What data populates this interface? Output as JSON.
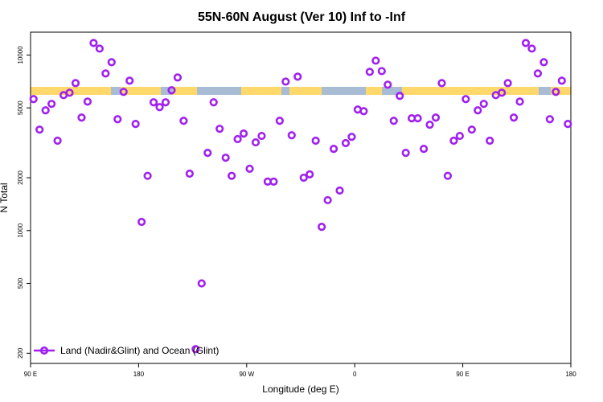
{
  "chart_data": {
    "type": "scatter",
    "title": "55N-60N August (Ver 10)   Inf to -Inf",
    "xlabel": "Longitude (deg E)",
    "ylabel": "N Total",
    "x": [
      92.5,
      97.5,
      102.5,
      107.5,
      112.5,
      117.5,
      122.5,
      127.5,
      132.5,
      137.5,
      142.5,
      147.5,
      152.5,
      157.5,
      162.5,
      167.5,
      172.5,
      177.5,
      182.5,
      187.5,
      192.5,
      197.5,
      202.5,
      207.5,
      212.5,
      217.5,
      222.5,
      227.5,
      232.5,
      237.5,
      242.5,
      247.5,
      252.5,
      257.5,
      262.5,
      267.5,
      272.5,
      277.5,
      282.5,
      287.5,
      292.5,
      297.5,
      302.5,
      307.5,
      312.5,
      317.5,
      322.5,
      327.5,
      332.5,
      337.5,
      342.5,
      347.5,
      352.5,
      357.5,
      362.5,
      367.5,
      372.5,
      377.5,
      382.5,
      387.5,
      392.5,
      397.5,
      402.5,
      407.5,
      412.5,
      417.5,
      422.5,
      427.5,
      432.5,
      437.5,
      442.5,
      447.5,
      452.5,
      457.5,
      462.5,
      467.5,
      472.5,
      477.5,
      482.5,
      487.5,
      492.5,
      497.5,
      502.5,
      507.5,
      512.5,
      517.5,
      522.5,
      527.5,
      532.5,
      537.5
    ],
    "series": [
      {
        "name": "Land (Nadir&Glint) and Ocean (Glint)",
        "color": "#a020f0",
        "values": [
          5610,
          3760,
          4840,
          5270,
          3250,
          5910,
          6100,
          6920,
          4400,
          5430,
          11710,
          10880,
          7850,
          9100,
          4310,
          6170,
          7140,
          4050,
          1120,
          2050,
          5380,
          5050,
          5380,
          6300,
          7450,
          4220,
          2110,
          211,
          500,
          2770,
          5380,
          3800,
          2600,
          2050,
          3320,
          3570,
          2250,
          3180,
          3460,
          1900,
          1900,
          4220,
          7060,
          3490,
          7530,
          2000,
          2090,
          3250,
          1050,
          1490,
          2920,
          1690,
          3150,
          3420,
          4890,
          4790,
          8020,
          9290,
          8100,
          6780,
          4220,
          5850,
          2770,
          4360,
          4360,
          2920,
          4010,
          4400,
          6920,
          2050,
          3250,
          3460,
          5610,
          3760,
          4840,
          5270,
          3250,
          5910,
          6100,
          6920,
          4400,
          5430,
          11710,
          10880,
          7850,
          9100,
          4310,
          6170,
          7140,
          4050
        ]
      }
    ],
    "xlim": [
      90,
      540
    ],
    "xticks": [
      {
        "value": 90,
        "label": "90 E"
      },
      180,
      {
        "value": 270,
        "label": "90 W"
      },
      {
        "value": 360,
        "label": "0"
      },
      {
        "value": 450,
        "label": "90 E"
      },
      {
        "value": 540,
        "label": "180"
      }
    ],
    "ylim": [
      175,
      13500
    ],
    "yticks": [
      200,
      500,
      1000,
      2000,
      5000,
      10000
    ],
    "ylog": true,
    "legend": "lower left"
  }
}
